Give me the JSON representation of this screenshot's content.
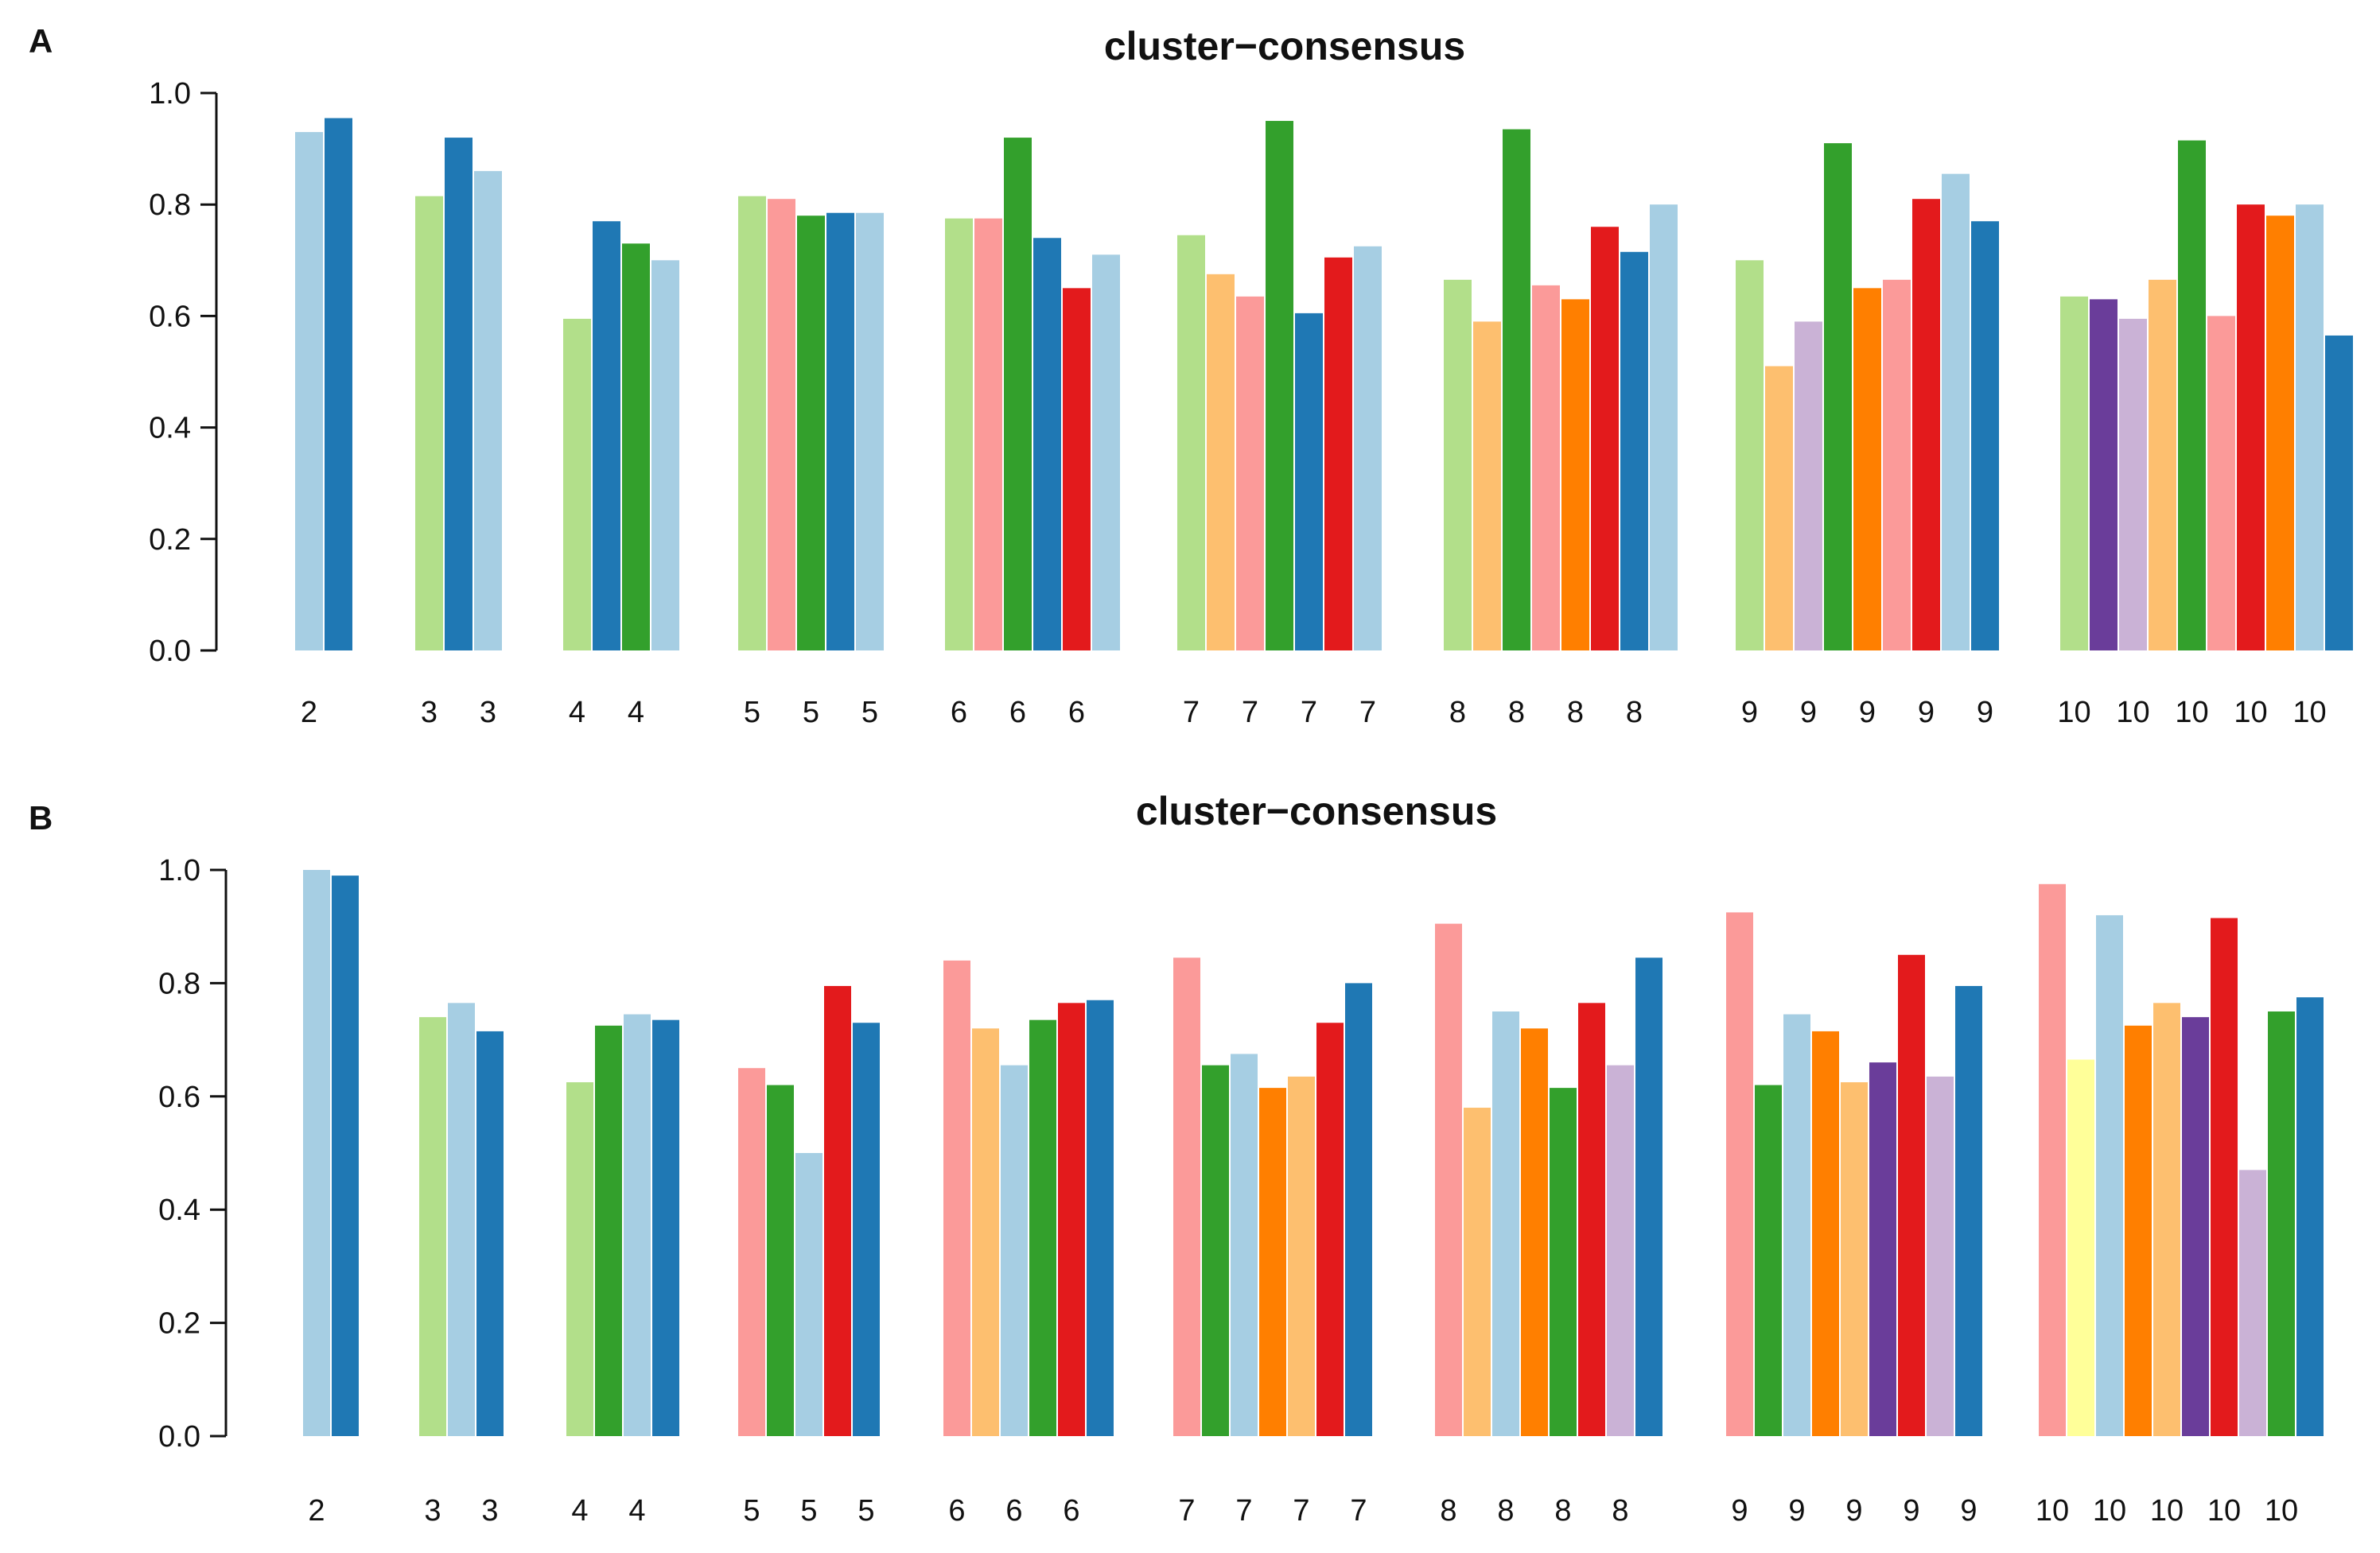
{
  "panels": [
    {
      "letter": "A",
      "chart_data": {
        "type": "bar",
        "title": "cluster−consensus",
        "xlabel": "",
        "ylabel": "",
        "ylim": [
          0,
          1
        ],
        "yticks": [
          "0.0",
          "0.2",
          "0.4",
          "0.6",
          "0.8",
          "1.0"
        ],
        "groups": [
          {
            "k": "2",
            "bars": [
              {
                "label": "2",
                "value": 0.93,
                "color": "#A6CEE3"
              },
              {
                "label": "",
                "value": 0.955,
                "color": "#1F78B4"
              }
            ]
          },
          {
            "k": "3",
            "bars": [
              {
                "label": "3",
                "value": 0.815,
                "color": "#B2DF8A"
              },
              {
                "label": "",
                "value": 0.92,
                "color": "#1F78B4"
              },
              {
                "label": "3",
                "value": 0.86,
                "color": "#A6CEE3"
              }
            ]
          },
          {
            "k": "4",
            "bars": [
              {
                "label": "4",
                "value": 0.595,
                "color": "#B2DF8A"
              },
              {
                "label": "",
                "value": 0.77,
                "color": "#1F78B4"
              },
              {
                "label": "4",
                "value": 0.73,
                "color": "#33A02C"
              },
              {
                "label": "",
                "value": 0.7,
                "color": "#A6CEE3"
              }
            ]
          },
          {
            "k": "5",
            "bars": [
              {
                "label": "5",
                "value": 0.815,
                "color": "#B2DF8A"
              },
              {
                "label": "",
                "value": 0.81,
                "color": "#FB9A99"
              },
              {
                "label": "5",
                "value": 0.78,
                "color": "#33A02C"
              },
              {
                "label": "",
                "value": 0.785,
                "color": "#1F78B4"
              },
              {
                "label": "5",
                "value": 0.785,
                "color": "#A6CEE3"
              }
            ]
          },
          {
            "k": "6",
            "bars": [
              {
                "label": "6",
                "value": 0.775,
                "color": "#B2DF8A"
              },
              {
                "label": "",
                "value": 0.775,
                "color": "#FB9A99"
              },
              {
                "label": "6",
                "value": 0.92,
                "color": "#33A02C"
              },
              {
                "label": "",
                "value": 0.74,
                "color": "#1F78B4"
              },
              {
                "label": "6",
                "value": 0.65,
                "color": "#E31A1C"
              },
              {
                "label": "",
                "value": 0.71,
                "color": "#A6CEE3"
              }
            ]
          },
          {
            "k": "7",
            "bars": [
              {
                "label": "7",
                "value": 0.745,
                "color": "#B2DF8A"
              },
              {
                "label": "",
                "value": 0.675,
                "color": "#FDBF6F"
              },
              {
                "label": "7",
                "value": 0.635,
                "color": "#FB9A99"
              },
              {
                "label": "",
                "value": 0.95,
                "color": "#33A02C"
              },
              {
                "label": "7",
                "value": 0.605,
                "color": "#1F78B4"
              },
              {
                "label": "",
                "value": 0.705,
                "color": "#E31A1C"
              },
              {
                "label": "7",
                "value": 0.725,
                "color": "#A6CEE3"
              }
            ]
          },
          {
            "k": "8",
            "bars": [
              {
                "label": "8",
                "value": 0.665,
                "color": "#B2DF8A"
              },
              {
                "label": "",
                "value": 0.59,
                "color": "#FDBF6F"
              },
              {
                "label": "8",
                "value": 0.935,
                "color": "#33A02C"
              },
              {
                "label": "",
                "value": 0.655,
                "color": "#FB9A99"
              },
              {
                "label": "8",
                "value": 0.63,
                "color": "#FF7F00"
              },
              {
                "label": "",
                "value": 0.76,
                "color": "#E31A1C"
              },
              {
                "label": "8",
                "value": 0.715,
                "color": "#1F78B4"
              },
              {
                "label": "",
                "value": 0.8,
                "color": "#A6CEE3"
              }
            ]
          },
          {
            "k": "9",
            "bars": [
              {
                "label": "9",
                "value": 0.7,
                "color": "#B2DF8A"
              },
              {
                "label": "",
                "value": 0.51,
                "color": "#FDBF6F"
              },
              {
                "label": "9",
                "value": 0.59,
                "color": "#CAB2D6"
              },
              {
                "label": "",
                "value": 0.91,
                "color": "#33A02C"
              },
              {
                "label": "9",
                "value": 0.65,
                "color": "#FF7F00"
              },
              {
                "label": "",
                "value": 0.665,
                "color": "#FB9A99"
              },
              {
                "label": "9",
                "value": 0.81,
                "color": "#E31A1C"
              },
              {
                "label": "",
                "value": 0.855,
                "color": "#A6CEE3"
              },
              {
                "label": "9",
                "value": 0.77,
                "color": "#1F78B4"
              }
            ]
          },
          {
            "k": "10",
            "bars": [
              {
                "label": "10",
                "value": 0.635,
                "color": "#B2DF8A"
              },
              {
                "label": "",
                "value": 0.63,
                "color": "#6A3D9A"
              },
              {
                "label": "10",
                "value": 0.595,
                "color": "#CAB2D6"
              },
              {
                "label": "",
                "value": 0.665,
                "color": "#FDBF6F"
              },
              {
                "label": "10",
                "value": 0.915,
                "color": "#33A02C"
              },
              {
                "label": "",
                "value": 0.6,
                "color": "#FB9A99"
              },
              {
                "label": "10",
                "value": 0.8,
                "color": "#E31A1C"
              },
              {
                "label": "",
                "value": 0.78,
                "color": "#FF7F00"
              },
              {
                "label": "10",
                "value": 0.8,
                "color": "#A6CEE3"
              },
              {
                "label": "",
                "value": 0.565,
                "color": "#1F78B4"
              }
            ]
          }
        ]
      }
    },
    {
      "letter": "B",
      "chart_data": {
        "type": "bar",
        "title": "cluster−consensus",
        "xlabel": "",
        "ylabel": "",
        "ylim": [
          0,
          1
        ],
        "yticks": [
          "0.0",
          "0.2",
          "0.4",
          "0.6",
          "0.8",
          "1.0"
        ],
        "groups": [
          {
            "k": "2",
            "bars": [
              {
                "label": "2",
                "value": 1.0,
                "color": "#A6CEE3"
              },
              {
                "label": "",
                "value": 0.99,
                "color": "#1F78B4"
              }
            ]
          },
          {
            "k": "3",
            "bars": [
              {
                "label": "3",
                "value": 0.74,
                "color": "#B2DF8A"
              },
              {
                "label": "",
                "value": 0.765,
                "color": "#A6CEE3"
              },
              {
                "label": "3",
                "value": 0.715,
                "color": "#1F78B4"
              }
            ]
          },
          {
            "k": "4",
            "bars": [
              {
                "label": "4",
                "value": 0.625,
                "color": "#B2DF8A"
              },
              {
                "label": "",
                "value": 0.725,
                "color": "#33A02C"
              },
              {
                "label": "4",
                "value": 0.745,
                "color": "#A6CEE3"
              },
              {
                "label": "",
                "value": 0.735,
                "color": "#1F78B4"
              }
            ]
          },
          {
            "k": "5",
            "bars": [
              {
                "label": "5",
                "value": 0.65,
                "color": "#FB9A99"
              },
              {
                "label": "",
                "value": 0.62,
                "color": "#33A02C"
              },
              {
                "label": "5",
                "value": 0.5,
                "color": "#A6CEE3"
              },
              {
                "label": "",
                "value": 0.795,
                "color": "#E31A1C"
              },
              {
                "label": "5",
                "value": 0.73,
                "color": "#1F78B4"
              }
            ]
          },
          {
            "k": "6",
            "bars": [
              {
                "label": "6",
                "value": 0.84,
                "color": "#FB9A99"
              },
              {
                "label": "",
                "value": 0.72,
                "color": "#FDBF6F"
              },
              {
                "label": "6",
                "value": 0.655,
                "color": "#A6CEE3"
              },
              {
                "label": "",
                "value": 0.735,
                "color": "#33A02C"
              },
              {
                "label": "6",
                "value": 0.765,
                "color": "#E31A1C"
              },
              {
                "label": "",
                "value": 0.77,
                "color": "#1F78B4"
              }
            ]
          },
          {
            "k": "7",
            "bars": [
              {
                "label": "7",
                "value": 0.845,
                "color": "#FB9A99"
              },
              {
                "label": "",
                "value": 0.655,
                "color": "#33A02C"
              },
              {
                "label": "7",
                "value": 0.675,
                "color": "#A6CEE3"
              },
              {
                "label": "",
                "value": 0.615,
                "color": "#FF7F00"
              },
              {
                "label": "7",
                "value": 0.635,
                "color": "#FDBF6F"
              },
              {
                "label": "",
                "value": 0.73,
                "color": "#E31A1C"
              },
              {
                "label": "7",
                "value": 0.8,
                "color": "#1F78B4"
              }
            ]
          },
          {
            "k": "8",
            "bars": [
              {
                "label": "8",
                "value": 0.905,
                "color": "#FB9A99"
              },
              {
                "label": "",
                "value": 0.58,
                "color": "#FDBF6F"
              },
              {
                "label": "8",
                "value": 0.75,
                "color": "#A6CEE3"
              },
              {
                "label": "",
                "value": 0.72,
                "color": "#FF7F00"
              },
              {
                "label": "8",
                "value": 0.615,
                "color": "#33A02C"
              },
              {
                "label": "",
                "value": 0.765,
                "color": "#E31A1C"
              },
              {
                "label": "8",
                "value": 0.655,
                "color": "#CAB2D6"
              },
              {
                "label": "",
                "value": 0.845,
                "color": "#1F78B4"
              }
            ]
          },
          {
            "k": "9",
            "bars": [
              {
                "label": "9",
                "value": 0.925,
                "color": "#FB9A99"
              },
              {
                "label": "",
                "value": 0.62,
                "color": "#33A02C"
              },
              {
                "label": "9",
                "value": 0.745,
                "color": "#A6CEE3"
              },
              {
                "label": "",
                "value": 0.715,
                "color": "#FF7F00"
              },
              {
                "label": "9",
                "value": 0.625,
                "color": "#FDBF6F"
              },
              {
                "label": "",
                "value": 0.66,
                "color": "#6A3D9A"
              },
              {
                "label": "9",
                "value": 0.85,
                "color": "#E31A1C"
              },
              {
                "label": "",
                "value": 0.635,
                "color": "#CAB2D6"
              },
              {
                "label": "9",
                "value": 0.795,
                "color": "#1F78B4"
              }
            ]
          },
          {
            "k": "10",
            "bars": [
              {
                "label": "10",
                "value": 0.975,
                "color": "#FB9A99"
              },
              {
                "label": "",
                "value": 0.665,
                "color": "#FFFF99"
              },
              {
                "label": "10",
                "value": 0.92,
                "color": "#A6CEE3"
              },
              {
                "label": "",
                "value": 0.725,
                "color": "#FF7F00"
              },
              {
                "label": "10",
                "value": 0.765,
                "color": "#FDBF6F"
              },
              {
                "label": "",
                "value": 0.74,
                "color": "#6A3D9A"
              },
              {
                "label": "10",
                "value": 0.915,
                "color": "#E31A1C"
              },
              {
                "label": "",
                "value": 0.47,
                "color": "#CAB2D6"
              },
              {
                "label": "10",
                "value": 0.75,
                "color": "#33A02C"
              },
              {
                "label": "",
                "value": 0.775,
                "color": "#1F78B4"
              }
            ]
          }
        ]
      }
    }
  ]
}
